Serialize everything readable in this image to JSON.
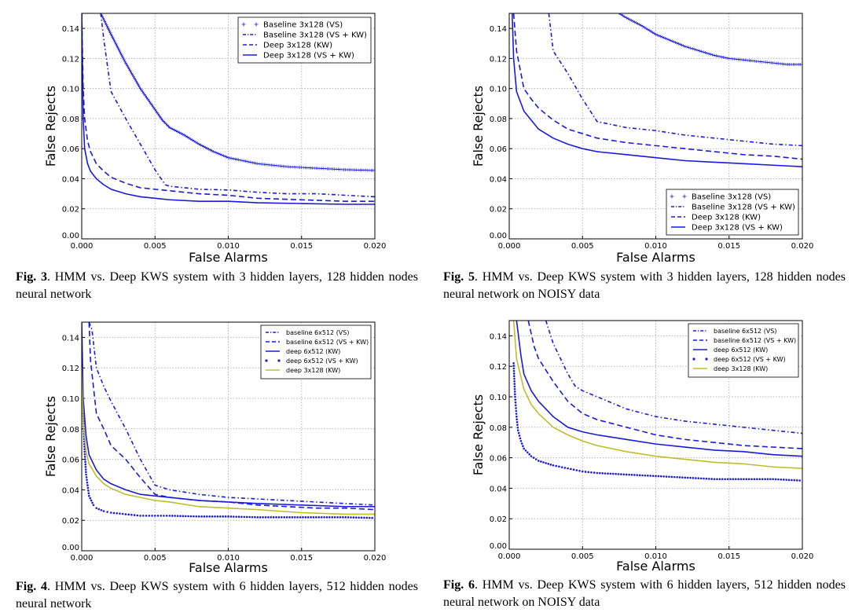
{
  "colors": {
    "blue": "#1a1adc",
    "olive": "#c0bd2a",
    "grid": "#b5b5b5"
  },
  "chart_data": [
    {
      "type": "line",
      "figure_label": "Fig. 3",
      "caption": ". HMM vs. Deep KWS system with 3 hidden layers, 128 hidden nodes neural network",
      "xlabel": "False Alarms",
      "ylabel": "False Rejects",
      "xlim": [
        0,
        0.02
      ],
      "ylim": [
        0,
        0.15
      ],
      "xticks": [
        "0.000",
        "0.005",
        "0.010",
        "0.015",
        "0.020"
      ],
      "yticks": [
        "0.00",
        "0.02",
        "0.04",
        "0.06",
        "0.08",
        "0.10",
        "0.12",
        "0.14"
      ],
      "legend_position": "top-right",
      "series": [
        {
          "name": "Baseline 3x128 (VS)",
          "style": "plus",
          "color": "blue",
          "x": [
            0.0013,
            0.002,
            0.003,
            0.004,
            0.005,
            0.0055,
            0.006,
            0.007,
            0.008,
            0.009,
            0.01,
            0.012,
            0.014,
            0.016,
            0.018,
            0.02
          ],
          "y": [
            0.15,
            0.136,
            0.117,
            0.1,
            0.086,
            0.079,
            0.074,
            0.069,
            0.063,
            0.058,
            0.054,
            0.05,
            0.048,
            0.047,
            0.046,
            0.0455
          ]
        },
        {
          "name": "Baseline 3x128 (VS + KW)",
          "style": "dashdot",
          "color": "blue",
          "x": [
            0.0013,
            0.0015,
            0.002,
            0.003,
            0.004,
            0.005,
            0.0057,
            0.006,
            0.008,
            0.01,
            0.012,
            0.014,
            0.016,
            0.018,
            0.02
          ],
          "y": [
            0.15,
            0.133,
            0.098,
            0.08,
            0.063,
            0.046,
            0.036,
            0.035,
            0.033,
            0.0325,
            0.031,
            0.03,
            0.03,
            0.029,
            0.028
          ]
        },
        {
          "name": "Deep 3x128 (KW)",
          "style": "dashed",
          "color": "blue",
          "x": [
            0,
            0.0001,
            0.0002,
            0.0004,
            0.0006,
            0.001,
            0.0015,
            0.002,
            0.003,
            0.004,
            0.005,
            0.006,
            0.008,
            0.01,
            0.012,
            0.015,
            0.018,
            0.02
          ],
          "y": [
            0.15,
            0.1,
            0.08,
            0.065,
            0.058,
            0.05,
            0.045,
            0.041,
            0.037,
            0.034,
            0.033,
            0.032,
            0.03,
            0.029,
            0.027,
            0.026,
            0.025,
            0.025
          ]
        },
        {
          "name": "Deep 3x128 (VS + KW)",
          "style": "solid",
          "color": "blue",
          "x": [
            0,
            0.0001,
            0.0002,
            0.0004,
            0.0006,
            0.001,
            0.0015,
            0.002,
            0.003,
            0.004,
            0.005,
            0.006,
            0.008,
            0.01,
            0.012,
            0.015,
            0.018,
            0.02
          ],
          "y": [
            0.15,
            0.08,
            0.06,
            0.05,
            0.045,
            0.04,
            0.036,
            0.033,
            0.03,
            0.028,
            0.027,
            0.026,
            0.025,
            0.025,
            0.024,
            0.0235,
            0.023,
            0.023
          ]
        }
      ]
    },
    {
      "type": "line",
      "figure_label": "Fig. 5",
      "caption": ". HMM vs. Deep KWS system with 3 hidden layers, 128 hidden nodes neural network on NOISY data",
      "xlabel": "False Alarms",
      "ylabel": "False Rejects",
      "xlim": [
        0,
        0.02
      ],
      "ylim": [
        0,
        0.15
      ],
      "xticks": [
        "0.000",
        "0.005",
        "0.010",
        "0.015",
        "0.020"
      ],
      "yticks": [
        "0.00",
        "0.02",
        "0.04",
        "0.06",
        "0.08",
        "0.10",
        "0.12",
        "0.14"
      ],
      "legend_position": "bottom-right",
      "series": [
        {
          "name": "Baseline 3x128 (VS)",
          "style": "plus",
          "color": "blue",
          "x": [
            0.0075,
            0.008,
            0.009,
            0.01,
            0.011,
            0.012,
            0.013,
            0.014,
            0.015,
            0.016,
            0.017,
            0.018,
            0.019,
            0.02
          ],
          "y": [
            0.15,
            0.147,
            0.142,
            0.136,
            0.132,
            0.128,
            0.125,
            0.122,
            0.12,
            0.119,
            0.118,
            0.117,
            0.116,
            0.116
          ]
        },
        {
          "name": "Baseline 3x128 (VS + KW)",
          "style": "dashdot",
          "color": "blue",
          "x": [
            0.0027,
            0.003,
            0.004,
            0.005,
            0.006,
            0.007,
            0.008,
            0.01,
            0.012,
            0.014,
            0.016,
            0.018,
            0.02
          ],
          "y": [
            0.15,
            0.125,
            0.11,
            0.093,
            0.078,
            0.076,
            0.074,
            0.072,
            0.069,
            0.067,
            0.065,
            0.063,
            0.062
          ]
        },
        {
          "name": "Deep 3x128 (KW)",
          "style": "dashed",
          "color": "blue",
          "x": [
            0.0003,
            0.0005,
            0.001,
            0.0015,
            0.002,
            0.003,
            0.004,
            0.005,
            0.006,
            0.008,
            0.01,
            0.012,
            0.014,
            0.016,
            0.018,
            0.02
          ],
          "y": [
            0.15,
            0.125,
            0.1,
            0.093,
            0.087,
            0.079,
            0.073,
            0.07,
            0.067,
            0.064,
            0.062,
            0.06,
            0.058,
            0.056,
            0.055,
            0.053
          ]
        },
        {
          "name": "Deep 3x128 (VS + KW)",
          "style": "solid",
          "color": "blue",
          "x": [
            0.0002,
            0.0003,
            0.0005,
            0.001,
            0.0015,
            0.002,
            0.003,
            0.004,
            0.005,
            0.006,
            0.008,
            0.01,
            0.012,
            0.014,
            0.016,
            0.018,
            0.02
          ],
          "y": [
            0.15,
            0.12,
            0.098,
            0.085,
            0.079,
            0.073,
            0.067,
            0.063,
            0.06,
            0.058,
            0.056,
            0.054,
            0.052,
            0.051,
            0.05,
            0.049,
            0.048
          ]
        }
      ]
    },
    {
      "type": "line",
      "figure_label": "Fig. 4",
      "caption": ". HMM vs. Deep KWS system with 6 hidden layers, 512 hidden nodes neural network",
      "xlabel": "False Alarms",
      "ylabel": "False Rejects",
      "xlim": [
        0,
        0.02
      ],
      "ylim": [
        0,
        0.15
      ],
      "xticks": [
        "0.000",
        "0.005",
        "0.010",
        "0.015",
        "0.020"
      ],
      "yticks": [
        "0.00",
        "0.02",
        "0.04",
        "0.06",
        "0.08",
        "0.10",
        "0.12",
        "0.14"
      ],
      "legend_position": "top-right",
      "series": [
        {
          "name": "baseline 6x512 (VS)",
          "style": "dashdot",
          "color": "blue",
          "x": [
            0.0005,
            0.0007,
            0.001,
            0.0015,
            0.002,
            0.003,
            0.004,
            0.005,
            0.006,
            0.008,
            0.01,
            0.012,
            0.014,
            0.016,
            0.018,
            0.02
          ],
          "y": [
            0.15,
            0.145,
            0.12,
            0.108,
            0.098,
            0.08,
            0.06,
            0.043,
            0.04,
            0.037,
            0.035,
            0.034,
            0.033,
            0.032,
            0.031,
            0.03
          ]
        },
        {
          "name": "baseline 6x512 (VS + KW)",
          "style": "dashed",
          "color": "blue",
          "x": [
            0.0005,
            0.0006,
            0.001,
            0.0015,
            0.002,
            0.003,
            0.004,
            0.005,
            0.006,
            0.008,
            0.01,
            0.012,
            0.014,
            0.016,
            0.018,
            0.02
          ],
          "y": [
            0.15,
            0.125,
            0.09,
            0.08,
            0.069,
            0.06,
            0.048,
            0.037,
            0.035,
            0.033,
            0.032,
            0.03,
            0.029,
            0.028,
            0.028,
            0.027
          ]
        },
        {
          "name": "deep 6x512 (KW)",
          "style": "solid",
          "color": "blue",
          "x": [
            0,
            0.0001,
            0.0003,
            0.0005,
            0.001,
            0.0015,
            0.002,
            0.003,
            0.004,
            0.005,
            0.006,
            0.008,
            0.01,
            0.012,
            0.015,
            0.018,
            0.02
          ],
          "y": [
            0.15,
            0.1,
            0.075,
            0.063,
            0.053,
            0.047,
            0.044,
            0.04,
            0.037,
            0.036,
            0.035,
            0.033,
            0.032,
            0.031,
            0.03,
            0.029,
            0.029
          ]
        },
        {
          "name": "deep 6x512 (VS + KW)",
          "style": "dotted",
          "color": "blue",
          "x": [
            0.0001,
            0.0002,
            0.0003,
            0.0005,
            0.0008,
            0.001,
            0.0015,
            0.002,
            0.003,
            0.004,
            0.005,
            0.006,
            0.008,
            0.01,
            0.012,
            0.014,
            0.016,
            0.018,
            0.02
          ],
          "y": [
            0.09,
            0.065,
            0.05,
            0.036,
            0.03,
            0.028,
            0.026,
            0.025,
            0.024,
            0.023,
            0.023,
            0.023,
            0.0225,
            0.0225,
            0.022,
            0.022,
            0.022,
            0.022,
            0.0215
          ]
        },
        {
          "name": "deep 3x128 (KW)",
          "style": "solid",
          "color": "olive",
          "x": [
            0,
            0.0001,
            0.0003,
            0.0005,
            0.001,
            0.0015,
            0.002,
            0.003,
            0.004,
            0.005,
            0.006,
            0.008,
            0.01,
            0.012,
            0.015,
            0.018,
            0.02
          ],
          "y": [
            0.12,
            0.085,
            0.065,
            0.057,
            0.049,
            0.044,
            0.041,
            0.037,
            0.035,
            0.033,
            0.032,
            0.029,
            0.028,
            0.027,
            0.025,
            0.024,
            0.024
          ]
        }
      ]
    },
    {
      "type": "line",
      "figure_label": "Fig. 6",
      "caption": ". HMM vs. Deep KWS system with 6 hidden layers, 512 hidden nodes neural network on NOISY data",
      "xlabel": "False Alarms",
      "ylabel": "False Rejects",
      "xlim": [
        0,
        0.02
      ],
      "ylim": [
        0,
        0.15
      ],
      "xticks": [
        "0.000",
        "0.005",
        "0.010",
        "0.015",
        "0.020"
      ],
      "yticks": [
        "0.00",
        "0.02",
        "0.04",
        "0.06",
        "0.08",
        "0.10",
        "0.12",
        "0.14"
      ],
      "legend_position": "top-right",
      "series": [
        {
          "name": "baseline 6x512 (VS)",
          "style": "dashdot",
          "color": "blue",
          "x": [
            0.0025,
            0.003,
            0.004,
            0.0045,
            0.005,
            0.006,
            0.008,
            0.01,
            0.012,
            0.014,
            0.016,
            0.018,
            0.02
          ],
          "y": [
            0.15,
            0.135,
            0.115,
            0.107,
            0.104,
            0.1,
            0.092,
            0.087,
            0.084,
            0.082,
            0.08,
            0.078,
            0.076
          ]
        },
        {
          "name": "baseline 6x512 (VS + KW)",
          "style": "dashed",
          "color": "blue",
          "x": [
            0.0013,
            0.0017,
            0.002,
            0.003,
            0.004,
            0.005,
            0.006,
            0.008,
            0.01,
            0.012,
            0.014,
            0.016,
            0.018,
            0.02
          ],
          "y": [
            0.15,
            0.133,
            0.125,
            0.11,
            0.097,
            0.089,
            0.085,
            0.08,
            0.075,
            0.072,
            0.07,
            0.068,
            0.067,
            0.066
          ]
        },
        {
          "name": "deep 6x512 (KW)",
          "style": "solid",
          "color": "blue",
          "x": [
            0.0005,
            0.0008,
            0.001,
            0.0015,
            0.002,
            0.003,
            0.004,
            0.005,
            0.006,
            0.008,
            0.01,
            0.012,
            0.014,
            0.016,
            0.018,
            0.02
          ],
          "y": [
            0.15,
            0.127,
            0.115,
            0.104,
            0.097,
            0.087,
            0.08,
            0.077,
            0.075,
            0.072,
            0.069,
            0.067,
            0.065,
            0.064,
            0.062,
            0.061
          ]
        },
        {
          "name": "deep 6x512 (VS + KW)",
          "style": "dotted",
          "color": "blue",
          "x": [
            0.0003,
            0.0004,
            0.0005,
            0.0006,
            0.0008,
            0.001,
            0.0015,
            0.002,
            0.003,
            0.004,
            0.005,
            0.006,
            0.008,
            0.01,
            0.012,
            0.014,
            0.016,
            0.018,
            0.02
          ],
          "y": [
            0.122,
            0.1,
            0.087,
            0.078,
            0.071,
            0.066,
            0.061,
            0.058,
            0.055,
            0.053,
            0.051,
            0.05,
            0.049,
            0.048,
            0.047,
            0.046,
            0.046,
            0.046,
            0.045
          ]
        },
        {
          "name": "deep 3x128 (KW)",
          "style": "solid",
          "color": "olive",
          "x": [
            0.0003,
            0.0005,
            0.001,
            0.0015,
            0.002,
            0.003,
            0.004,
            0.005,
            0.006,
            0.008,
            0.01,
            0.012,
            0.014,
            0.016,
            0.018,
            0.02
          ],
          "y": [
            0.15,
            0.125,
            0.105,
            0.095,
            0.089,
            0.08,
            0.075,
            0.071,
            0.068,
            0.064,
            0.061,
            0.059,
            0.057,
            0.056,
            0.054,
            0.053
          ]
        }
      ]
    }
  ]
}
